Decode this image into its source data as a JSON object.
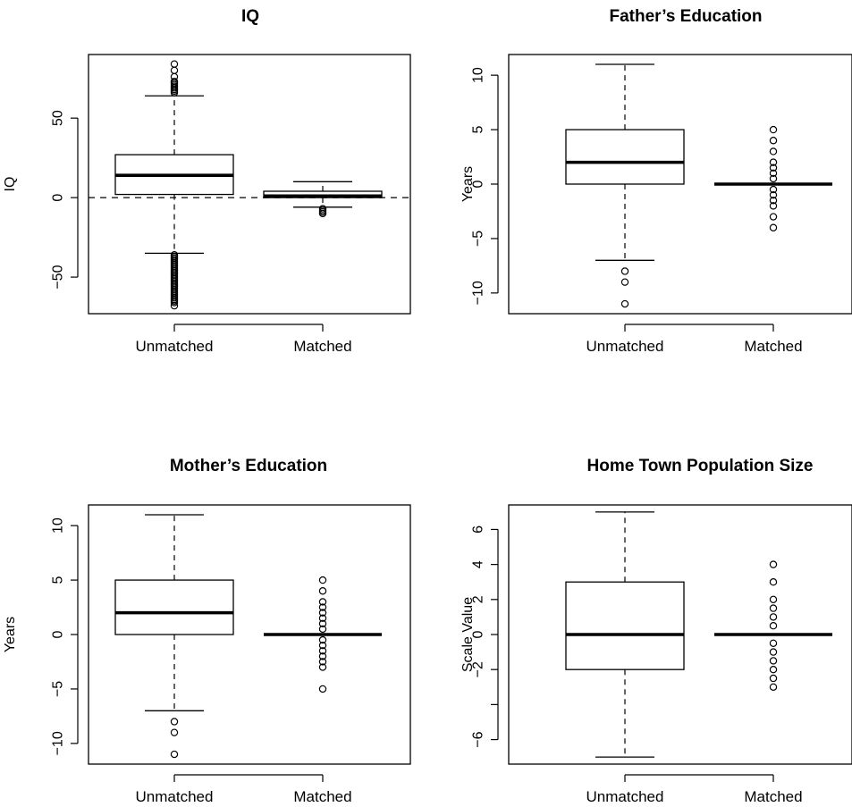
{
  "chart_data": [
    {
      "type": "box",
      "title": "IQ",
      "ylabel": "IQ",
      "categories": [
        "Unmatched",
        "Matched"
      ],
      "ylim": [
        -73,
        90
      ],
      "yticks": [
        -50,
        0,
        50
      ],
      "ytick_labels": [
        "−50",
        "0",
        "50"
      ],
      "reference_line": 0,
      "boxes": [
        {
          "category": "Unmatched",
          "whisker_low": -35,
          "q1": 2,
          "median": 14,
          "q3": 27,
          "whisker_high": 64,
          "outliers": [
            -36,
            -37,
            -38,
            -39,
            -40,
            -41,
            -42,
            -43,
            -44,
            -45,
            -46,
            -47,
            -48,
            -49,
            -50,
            -51,
            -52,
            -53,
            -54,
            -55,
            -56,
            -57,
            -58,
            -59,
            -60,
            -61,
            -62,
            -63,
            -64,
            -65,
            -66,
            -68,
            66,
            67,
            68,
            69,
            70,
            71,
            72,
            73,
            76,
            80,
            84
          ]
        },
        {
          "category": "Matched",
          "whisker_low": -6,
          "q1": 0,
          "median": 1,
          "q3": 4,
          "whisker_high": 10,
          "outliers": [
            -7,
            -8,
            -9,
            -10
          ]
        }
      ]
    },
    {
      "type": "box",
      "title": "Father’s Education",
      "ylabel": "Years",
      "categories": [
        "Unmatched",
        "Matched"
      ],
      "ylim": [
        -11.9,
        11.9
      ],
      "yticks": [
        -10,
        -5,
        0,
        5,
        10
      ],
      "ytick_labels": [
        "−10",
        "−5",
        "0",
        "5",
        "10"
      ],
      "boxes": [
        {
          "category": "Unmatched",
          "whisker_low": -7,
          "q1": 0,
          "median": 2,
          "q3": 5,
          "whisker_high": 11,
          "outliers": [
            -8,
            -9,
            -11
          ]
        },
        {
          "category": "Matched",
          "whisker_low": 0,
          "q1": 0,
          "median": 0,
          "q3": 0,
          "whisker_high": 0,
          "outliers": [
            -4,
            -3,
            -2,
            -1.5,
            -1,
            -0.5,
            0.5,
            1,
            1.5,
            2,
            3,
            4,
            5
          ]
        }
      ]
    },
    {
      "type": "box",
      "title": "Mother’s Education",
      "ylabel": "Years",
      "categories": [
        "Unmatched",
        "Matched"
      ],
      "ylim": [
        -11.9,
        11.9
      ],
      "yticks": [
        -10,
        -5,
        0,
        5,
        10
      ],
      "ytick_labels": [
        "−10",
        "−5",
        "0",
        "5",
        "10"
      ],
      "boxes": [
        {
          "category": "Unmatched",
          "whisker_low": -7,
          "q1": 0,
          "median": 2,
          "q3": 5,
          "whisker_high": 11,
          "outliers": [
            -8,
            -9,
            -11
          ]
        },
        {
          "category": "Matched",
          "whisker_low": 0,
          "q1": 0,
          "median": 0,
          "q3": 0,
          "whisker_high": 0,
          "outliers": [
            -5,
            -3,
            -2.5,
            -2,
            -1.5,
            -1,
            -0.5,
            0.5,
            1,
            1.5,
            2,
            2.5,
            3,
            4,
            5
          ]
        }
      ]
    },
    {
      "type": "box",
      "title": "Home Town Population Size",
      "ylabel": "Scale Value",
      "categories": [
        "Unmatched",
        "Matched"
      ],
      "ylim": [
        -7.4,
        7.4
      ],
      "yticks": [
        -6,
        -4,
        -2,
        0,
        2,
        4,
        6
      ],
      "ytick_labels": [
        "−6",
        "",
        "−2",
        "0",
        "2",
        "4",
        "6"
      ],
      "boxes": [
        {
          "category": "Unmatched",
          "whisker_low": -7,
          "q1": -2,
          "median": 0,
          "q3": 3,
          "whisker_high": 7,
          "outliers": []
        },
        {
          "category": "Matched",
          "whisker_low": 0,
          "q1": 0,
          "median": 0,
          "q3": 0,
          "whisker_high": 0,
          "outliers": [
            -3,
            -2.5,
            -2,
            -1.5,
            -1,
            -0.5,
            0.5,
            1,
            1.5,
            2,
            3,
            4
          ]
        }
      ]
    }
  ]
}
